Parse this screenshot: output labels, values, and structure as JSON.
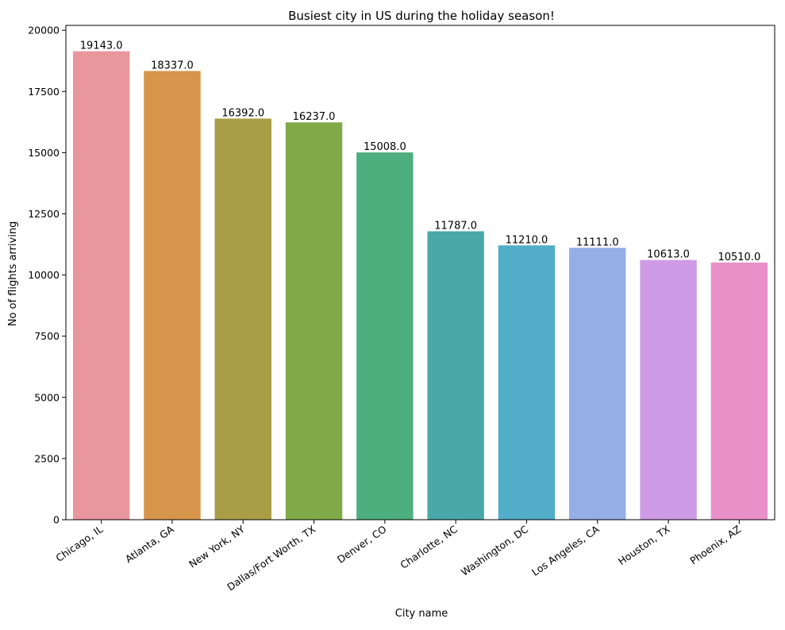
{
  "chart_data": {
    "type": "bar",
    "title": "Busiest city in US during the holiday season!",
    "xlabel": "City name",
    "ylabel": "No of flights arriving",
    "categories": [
      "Chicago, IL",
      "Atlanta, GA",
      "New York, NY",
      "Dallas/Fort Worth, TX",
      "Denver, CO",
      "Charlotte, NC",
      "Washington, DC",
      "Los Angeles, CA",
      "Houston, TX",
      "Phoenix, AZ"
    ],
    "values": [
      19143,
      18337,
      16392,
      16237,
      15008,
      11787,
      11210,
      11111,
      10613,
      10510
    ],
    "data_labels": [
      "19143.0",
      "18337.0",
      "16392.0",
      "16237.0",
      "15008.0",
      "11787.0",
      "11210.0",
      "11111.0",
      "10613.0",
      "10510.0"
    ],
    "colors": [
      "#e9969f",
      "#d6954b",
      "#a99e46",
      "#80aa47",
      "#4daf7e",
      "#4aa9a8",
      "#52aec8",
      "#94aee6",
      "#cf9be7",
      "#e990c9"
    ],
    "yticks": [
      0,
      2500,
      5000,
      7500,
      10000,
      12500,
      15000,
      17500,
      20000
    ],
    "ylim": [
      0,
      20200
    ],
    "grid": false,
    "legend": "none"
  }
}
